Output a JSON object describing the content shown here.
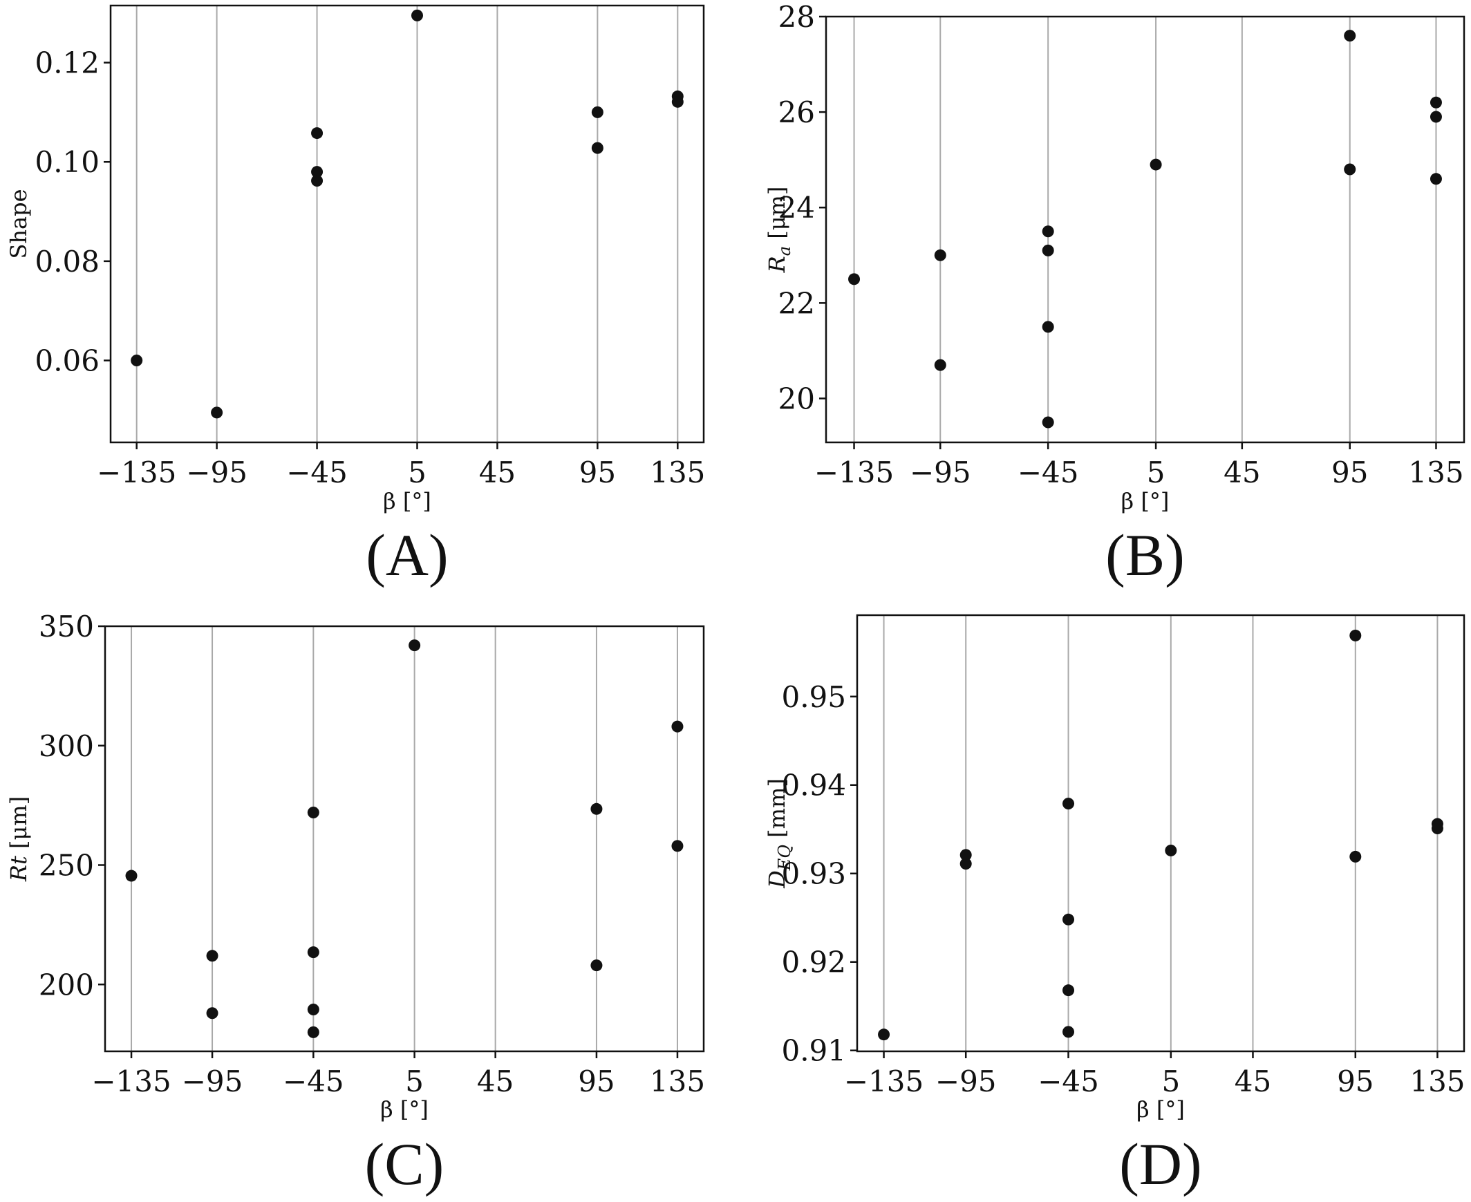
{
  "chart_data": [
    {
      "type": "scatter",
      "panel": "(A)",
      "xlabel": "β [°]",
      "ylabel": "Shape",
      "xticks": [
        -135,
        -95,
        -45,
        5,
        45,
        95,
        135
      ],
      "xtick_labels": [
        "−135",
        "−95",
        "−45",
        "5",
        "45",
        "95",
        "135"
      ],
      "yticks": [
        0.06,
        0.08,
        0.1,
        0.12
      ],
      "ytick_labels": [
        "0.06",
        "0.08",
        "0.10",
        "0.12"
      ],
      "xlim": [
        -148,
        148
      ],
      "ylim": [
        0.0435,
        0.1315
      ],
      "grid": "vertical",
      "points": [
        {
          "x": -135,
          "y": 0.06
        },
        {
          "x": -95,
          "y": 0.0495
        },
        {
          "x": -45,
          "y": 0.1058
        },
        {
          "x": -45,
          "y": 0.098
        },
        {
          "x": -45,
          "y": 0.0962
        },
        {
          "x": 5,
          "y": 0.1295
        },
        {
          "x": 95,
          "y": 0.11
        },
        {
          "x": 95,
          "y": 0.1028
        },
        {
          "x": 135,
          "y": 0.1132
        },
        {
          "x": 135,
          "y": 0.1121
        }
      ]
    },
    {
      "type": "scatter",
      "panel": "(B)",
      "xlabel": "β [°]",
      "ylabel_main": "R",
      "ylabel_sub": "a",
      "ylabel_unit": " [μm]",
      "xticks": [
        -135,
        -95,
        -45,
        5,
        45,
        95,
        135
      ],
      "xtick_labels": [
        "−135",
        "−95",
        "−45",
        "5",
        "45",
        "95",
        "135"
      ],
      "yticks": [
        20,
        22,
        24,
        26,
        28
      ],
      "ytick_labels": [
        "20",
        "22",
        "24",
        "26",
        "28"
      ],
      "xlim": [
        -148,
        148
      ],
      "ylim": [
        19.08,
        28.0
      ],
      "grid": "vertical",
      "points": [
        {
          "x": -135,
          "y": 22.5
        },
        {
          "x": -95,
          "y": 23.0
        },
        {
          "x": -95,
          "y": 20.7
        },
        {
          "x": -45,
          "y": 23.5
        },
        {
          "x": -45,
          "y": 23.1
        },
        {
          "x": -45,
          "y": 21.5
        },
        {
          "x": -45,
          "y": 19.5
        },
        {
          "x": 5,
          "y": 24.9
        },
        {
          "x": 95,
          "y": 27.6
        },
        {
          "x": 95,
          "y": 24.8
        },
        {
          "x": 135,
          "y": 26.2
        },
        {
          "x": 135,
          "y": 25.9
        },
        {
          "x": 135,
          "y": 24.6
        }
      ]
    },
    {
      "type": "scatter",
      "panel": "(C)",
      "xlabel": "β [°]",
      "ylabel_main": "Rt",
      "ylabel_unit": " [μm]",
      "xticks": [
        -135,
        -95,
        -45,
        5,
        45,
        95,
        135
      ],
      "xtick_labels": [
        "−135",
        "−95",
        "−45",
        "5",
        "45",
        "95",
        "135"
      ],
      "yticks": [
        200,
        250,
        300,
        350
      ],
      "ytick_labels": [
        "200",
        "250",
        "300",
        "350"
      ],
      "xlim": [
        -148,
        148
      ],
      "ylim": [
        172,
        350
      ],
      "grid": "vertical",
      "points": [
        {
          "x": -135,
          "y": 245.5
        },
        {
          "x": -95,
          "y": 212
        },
        {
          "x": -95,
          "y": 188
        },
        {
          "x": -45,
          "y": 272
        },
        {
          "x": -45,
          "y": 213.5
        },
        {
          "x": -45,
          "y": 189.5
        },
        {
          "x": -45,
          "y": 180
        },
        {
          "x": 5,
          "y": 342
        },
        {
          "x": 95,
          "y": 273.5
        },
        {
          "x": 95,
          "y": 208
        },
        {
          "x": 135,
          "y": 308
        },
        {
          "x": 135,
          "y": 258
        }
      ]
    },
    {
      "type": "scatter",
      "panel": "(D)",
      "xlabel": "β [°]",
      "ylabel_main": "D",
      "ylabel_sub": "EQ",
      "ylabel_unit": " [mm]",
      "xticks": [
        -135,
        -95,
        -45,
        5,
        45,
        95,
        135
      ],
      "xtick_labels": [
        "−135",
        "−95",
        "−45",
        "5",
        "45",
        "95",
        "135"
      ],
      "yticks": [
        0.91,
        0.92,
        0.93,
        0.94,
        0.95
      ],
      "ytick_labels": [
        "0.91",
        "0.92",
        "0.93",
        "0.94",
        "0.95"
      ],
      "xlim": [
        -148,
        148
      ],
      "ylim": [
        0.9099,
        0.9592
      ],
      "grid": "vertical",
      "points": [
        {
          "x": -135,
          "y": 0.9118
        },
        {
          "x": -95,
          "y": 0.9321
        },
        {
          "x": -95,
          "y": 0.9311
        },
        {
          "x": -45,
          "y": 0.9379
        },
        {
          "x": -45,
          "y": 0.9248
        },
        {
          "x": -45,
          "y": 0.9168
        },
        {
          "x": -45,
          "y": 0.9121
        },
        {
          "x": 5,
          "y": 0.9326
        },
        {
          "x": 95,
          "y": 0.9569
        },
        {
          "x": 95,
          "y": 0.9319
        },
        {
          "x": 135,
          "y": 0.9356
        },
        {
          "x": 135,
          "y": 0.9351
        }
      ]
    }
  ]
}
